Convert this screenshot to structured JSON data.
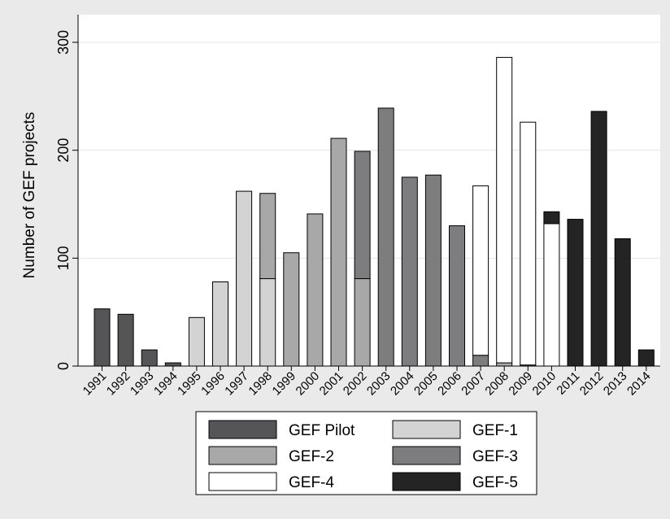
{
  "chart_data": {
    "type": "bar",
    "stacked": true,
    "ylabel": "Number of GEF projects",
    "ylim": [
      0,
      300
    ],
    "yticks": [
      0,
      100,
      200,
      300
    ],
    "grid": "horizontal",
    "legend_position": "bottom",
    "categories": [
      "1991",
      "1992",
      "1993",
      "1994",
      "1995",
      "1996",
      "1997",
      "1998",
      "1999",
      "2000",
      "2001",
      "2002",
      "2003",
      "2004",
      "2005",
      "2006",
      "2007",
      "2008",
      "2009",
      "2010",
      "2011",
      "2012",
      "2013",
      "2014"
    ],
    "series": [
      {
        "name": "GEF Pilot",
        "color": "#555558",
        "values": [
          53,
          48,
          15,
          3,
          0,
          0,
          0,
          0,
          0,
          0,
          0,
          0,
          0,
          0,
          0,
          0,
          0,
          0,
          0,
          0,
          0,
          0,
          0,
          0
        ]
      },
      {
        "name": "GEF-1",
        "color": "#d3d3d3",
        "values": [
          0,
          0,
          0,
          0,
          45,
          78,
          162,
          81,
          0,
          0,
          0,
          0,
          0,
          0,
          0,
          0,
          0,
          0,
          0,
          0,
          0,
          0,
          0,
          0
        ]
      },
      {
        "name": "GEF-2",
        "color": "#a8a8a8",
        "values": [
          0,
          0,
          0,
          0,
          0,
          0,
          0,
          79,
          105,
          141,
          211,
          81,
          0,
          0,
          0,
          0,
          0,
          3,
          0,
          0,
          0,
          0,
          0,
          0
        ]
      },
      {
        "name": "GEF-3",
        "color": "#7d7d80",
        "values": [
          0,
          0,
          0,
          0,
          0,
          0,
          0,
          0,
          0,
          0,
          0,
          118,
          239,
          175,
          177,
          130,
          10,
          0,
          1,
          0,
          0,
          0,
          0,
          0
        ]
      },
      {
        "name": "GEF-4",
        "color": "#ffffff",
        "values": [
          0,
          0,
          0,
          0,
          0,
          0,
          0,
          0,
          0,
          0,
          0,
          0,
          0,
          0,
          0,
          0,
          157,
          283,
          225,
          132,
          0,
          0,
          0,
          0
        ]
      },
      {
        "name": "GEF-5",
        "color": "#242424",
        "values": [
          0,
          0,
          0,
          0,
          0,
          0,
          0,
          0,
          0,
          0,
          0,
          0,
          0,
          0,
          0,
          0,
          0,
          0,
          0,
          11,
          136,
          236,
          118,
          15
        ]
      }
    ]
  }
}
